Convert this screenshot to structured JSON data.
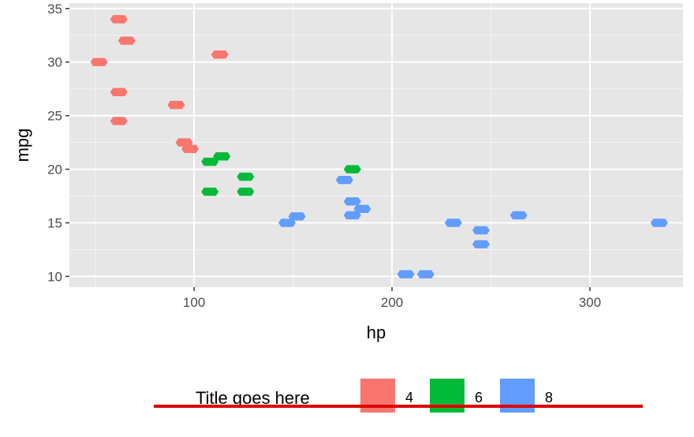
{
  "chart_data": {
    "type": "hexbin",
    "xlabel": "hp",
    "ylabel": "mpg",
    "xlim": [
      37,
      347
    ],
    "ylim": [
      9.0,
      35.5
    ],
    "x_ticks": [
      100,
      200,
      300
    ],
    "y_ticks": [
      10,
      15,
      20,
      25,
      30,
      35
    ],
    "grid": true,
    "legend": {
      "title": "Title goes here",
      "position": "bottom",
      "entries": [
        "4",
        "6",
        "8"
      ]
    },
    "colors": {
      "4": "#F8766D",
      "6": "#00BA38",
      "8": "#619CFF"
    },
    "series": [
      {
        "name": "4",
        "points": [
          [
            52,
            30.0
          ],
          [
            62,
            24.5
          ],
          [
            62,
            27.2
          ],
          [
            62,
            34.0
          ],
          [
            66,
            32.0
          ],
          [
            91,
            26.0
          ],
          [
            95,
            22.5
          ],
          [
            98,
            21.9
          ],
          [
            113,
            30.7
          ],
          [
            114,
            21.2
          ]
        ]
      },
      {
        "name": "6",
        "points": [
          [
            108,
            20.7
          ],
          [
            108,
            17.9
          ],
          [
            114,
            21.2
          ],
          [
            126,
            19.3
          ],
          [
            126,
            17.9
          ],
          [
            180,
            20.0
          ]
        ]
      },
      {
        "name": "8",
        "points": [
          [
            147,
            15.0
          ],
          [
            152,
            15.6
          ],
          [
            176,
            19.0
          ],
          [
            180,
            17.0
          ],
          [
            180,
            15.7
          ],
          [
            185,
            16.3
          ],
          [
            207,
            10.2
          ],
          [
            217,
            10.2
          ],
          [
            231,
            15.0
          ],
          [
            245,
            14.3
          ],
          [
            245,
            13.0
          ],
          [
            264,
            15.7
          ],
          [
            335,
            15.0
          ]
        ]
      }
    ],
    "annotation_line_color": "#dd0000"
  }
}
